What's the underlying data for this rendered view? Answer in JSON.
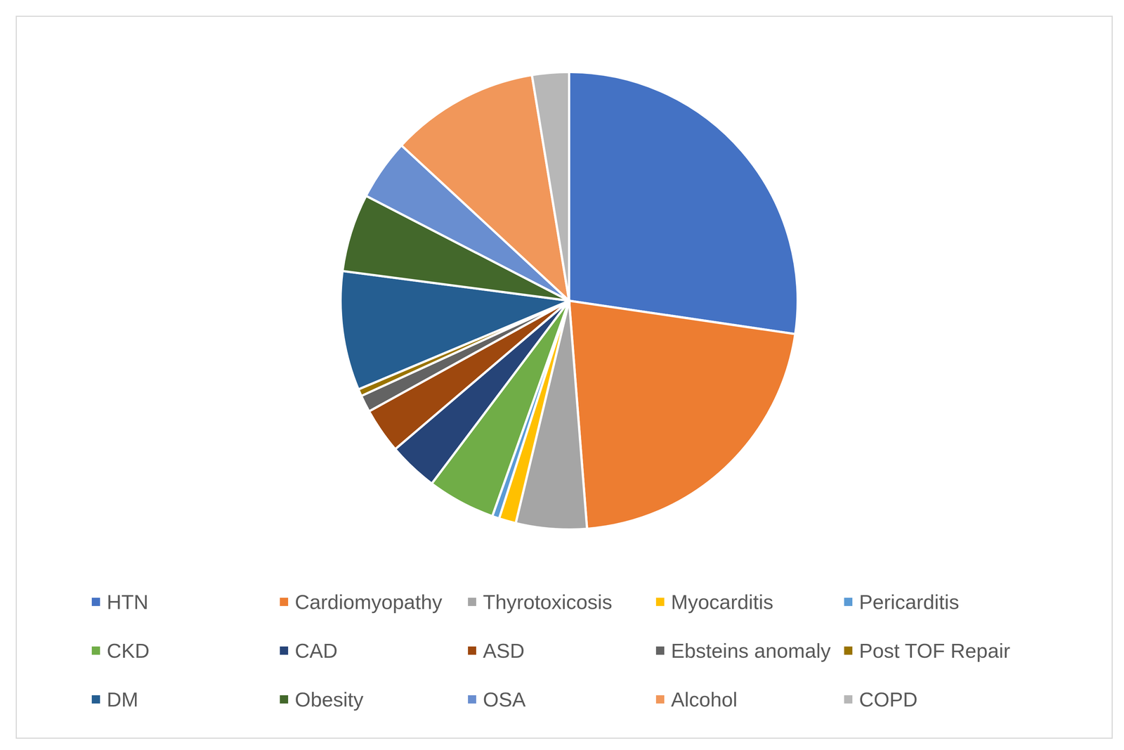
{
  "chart_data": {
    "type": "pie",
    "categories": [
      "HTN",
      "Cardiomyopathy",
      "Thyrotoxicosis",
      "Myocarditis",
      "Pericarditis",
      "CKD",
      "CAD",
      "ASD",
      "Ebsteins anomaly",
      "Post TOF Repair",
      "DM",
      "Obesity",
      "OSA",
      "Alcohol",
      "COPD"
    ],
    "values": [
      27.3,
      21.4,
      5,
      1.2,
      0.5,
      4.8,
      3.5,
      3.2,
      1.2,
      0.5,
      8.4,
      5.5,
      4.3,
      10.5,
      2.6
    ],
    "colors": [
      "#4472c4",
      "#ed7d31",
      "#a5a5a5",
      "#ffc000",
      "#5b9bd5",
      "#70ad47",
      "#264478",
      "#9e480e",
      "#636363",
      "#997300",
      "#255e91",
      "#43682b",
      "#698ed0",
      "#f1975a",
      "#b7b7b7"
    ],
    "legend": "bottom"
  }
}
